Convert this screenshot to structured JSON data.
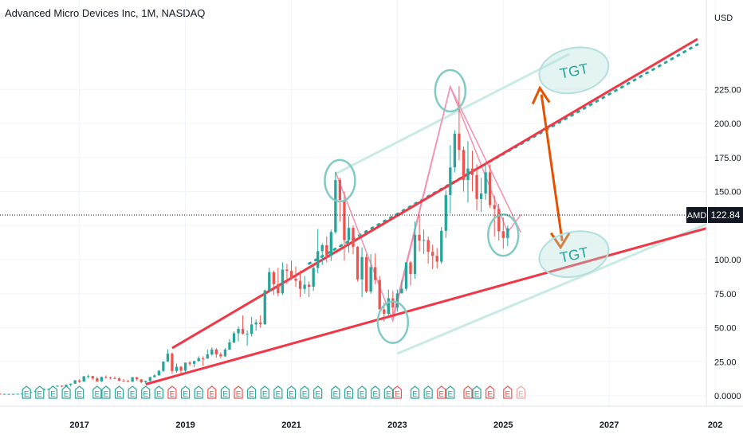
{
  "header": {
    "title": "Advanced Micro Devices Inc, 1M, NASDAQ"
  },
  "axis": {
    "currency_label": "USD"
  },
  "price_label": {
    "symbol": "AMD",
    "value": "122.84"
  },
  "annotations": {
    "target_upper": "TGT",
    "target_lower": "TGT",
    "earnings_marker": "E"
  },
  "colors": {
    "up": "#26a69a",
    "down": "#ef5350",
    "channel": "#f23645",
    "parallel": "#c8ebe5",
    "dotted": "#26a69a",
    "arrow": "#e65100",
    "circle": "#80cbc4",
    "triangle": "#f48fb1",
    "grid": "#f0f3fa"
  },
  "chart_data": {
    "type": "candlestick",
    "title": "Advanced Micro Devices Inc, 1M, NASDAQ",
    "interval": "1M",
    "exchange": "NASDAQ",
    "y_axis": {
      "unit": "USD",
      "ylim": [
        0,
        250
      ],
      "ticks": [
        0,
        25,
        50,
        75,
        100,
        125,
        150,
        175,
        200,
        225
      ]
    },
    "y_tick_labels": [
      "0.0000",
      "25.00",
      "50.00",
      "75.00",
      "100.00",
      "",
      "150.00",
      "175.00",
      "200.00",
      "225.00"
    ],
    "x_axis": {
      "range": [
        "2015-07",
        "2028-11"
      ],
      "ticks": [
        "2017",
        "2019",
        "2021",
        "2023",
        "2025",
        "2027",
        "202"
      ]
    },
    "last_price": 122.84,
    "candles_start": "2015-01",
    "candles": [
      [
        2,
        2,
        1.6,
        1.8
      ],
      [
        1.8,
        1.9,
        1.6,
        1.7
      ],
      [
        1.7,
        1.8,
        1.5,
        1.6
      ],
      [
        1.6,
        1.7,
        1.4,
        1.5
      ],
      [
        1.5,
        1.6,
        1.4,
        1.5
      ],
      [
        1.5,
        1.6,
        1.4,
        1.5
      ],
      [
        1.5,
        1.6,
        1.3,
        1.4
      ],
      [
        1.4,
        1.5,
        1.3,
        1.4
      ],
      [
        1.4,
        1.5,
        1.3,
        1.4
      ],
      [
        1.4,
        1.5,
        1.3,
        1.4
      ],
      [
        1.4,
        1.5,
        1.4,
        1.5
      ],
      [
        1.5,
        1.6,
        1.4,
        1.6
      ],
      [
        1.6,
        2.4,
        1.5,
        2.3
      ],
      [
        2.3,
        2.8,
        2.2,
        2.8
      ],
      [
        2.8,
        3.7,
        2.7,
        3.6
      ],
      [
        3.6,
        4.4,
        3.5,
        4.3
      ],
      [
        4.3,
        5.2,
        4.2,
        5.1
      ],
      [
        5.1,
        5.4,
        4.5,
        5.1
      ],
      [
        5.1,
        7.1,
        5.0,
        6.9
      ],
      [
        6.9,
        7.5,
        6.5,
        7.4
      ],
      [
        7.4,
        7.6,
        6.2,
        6.8
      ],
      [
        6.8,
        8.3,
        6.6,
        8.1
      ],
      [
        8.1,
        9.0,
        6.8,
        8.9
      ],
      [
        8.9,
        11.7,
        8.8,
        11.3
      ],
      [
        11.3,
        12.1,
        9.5,
        10.4
      ],
      [
        10.4,
        14.6,
        10.3,
        14.3
      ],
      [
        14.3,
        15.6,
        12.8,
        14.5
      ],
      [
        14.5,
        14.7,
        11.8,
        12.8
      ],
      [
        12.8,
        13.9,
        10.1,
        10.6
      ],
      [
        10.6,
        14.0,
        10.2,
        13.8
      ],
      [
        13.8,
        15.0,
        12.6,
        13.6
      ],
      [
        13.6,
        14.0,
        12.0,
        13.0
      ],
      [
        13.0,
        14.3,
        12.2,
        12.8
      ],
      [
        12.8,
        13.5,
        10.7,
        11.0
      ],
      [
        11.0,
        12.4,
        10.6,
        10.9
      ],
      [
        10.9,
        11.5,
        10.0,
        10.3
      ],
      [
        10.3,
        13.6,
        10.2,
        13.7
      ],
      [
        13.7,
        13.6,
        11.0,
        12.1
      ],
      [
        12.1,
        12.2,
        9.2,
        10.0
      ],
      [
        10.0,
        11.0,
        9.0,
        10.9
      ],
      [
        10.9,
        14.0,
        10.5,
        13.7
      ],
      [
        13.7,
        16.0,
        13.4,
        15.0
      ],
      [
        15.0,
        19.0,
        14.8,
        18.3
      ],
      [
        18.3,
        25.0,
        17.5,
        25.2
      ],
      [
        25.2,
        34.1,
        24.8,
        30.9
      ],
      [
        30.9,
        32.0,
        16.0,
        18.2
      ],
      [
        18.2,
        23.7,
        16.9,
        21.3
      ],
      [
        21.3,
        22.0,
        16.0,
        18.5
      ],
      [
        18.5,
        24.3,
        17.1,
        24.4
      ],
      [
        24.4,
        25.5,
        22.0,
        23.5
      ],
      [
        23.5,
        25.8,
        21.0,
        25.5
      ],
      [
        25.5,
        29.0,
        25.0,
        27.6
      ],
      [
        27.6,
        29.0,
        22.0,
        27.4
      ],
      [
        27.4,
        34.0,
        27.0,
        30.4
      ],
      [
        30.4,
        35.5,
        29.5,
        34.0
      ],
      [
        34.0,
        35.0,
        28.0,
        30.5
      ],
      [
        30.5,
        31.8,
        27.5,
        29.0
      ],
      [
        29.0,
        35.0,
        28.5,
        33.9
      ],
      [
        33.9,
        41.7,
        33.8,
        39.2
      ],
      [
        39.2,
        47.3,
        38.6,
        45.9
      ],
      [
        45.9,
        51.0,
        40.0,
        49.1
      ],
      [
        49.1,
        59.0,
        45.0,
        45.5
      ],
      [
        45.5,
        48.0,
        36.8,
        45.5
      ],
      [
        45.5,
        58.0,
        43.5,
        52.4
      ],
      [
        52.4,
        56.0,
        48.0,
        53.8
      ],
      [
        53.8,
        59.0,
        50.0,
        52.6
      ],
      [
        52.6,
        78.0,
        52.0,
        77.4
      ],
      [
        77.4,
        94.0,
        76.0,
        90.8
      ],
      [
        90.8,
        92.0,
        74.0,
        82.0
      ],
      [
        82.0,
        94.0,
        73.0,
        75.3
      ],
      [
        75.3,
        98.0,
        74.0,
        92.7
      ],
      [
        92.7,
        97.0,
        82.0,
        91.7
      ],
      [
        91.7,
        99.2,
        85.0,
        86.0
      ],
      [
        86.0,
        95.0,
        80.0,
        84.5
      ],
      [
        84.5,
        92.0,
        72.5,
        78.5
      ],
      [
        78.5,
        88.0,
        75.0,
        81.6
      ],
      [
        81.6,
        84.0,
        72.5,
        80.1
      ],
      [
        80.1,
        95.0,
        77.0,
        93.9
      ],
      [
        93.9,
        122.5,
        90.0,
        106.2
      ],
      [
        106.2,
        112.0,
        96.0,
        110.6
      ],
      [
        110.6,
        117.0,
        98.0,
        102.9
      ],
      [
        102.9,
        122.0,
        99.0,
        120.2
      ],
      [
        120.2,
        164.5,
        119.0,
        158.4
      ],
      [
        158.4,
        160.0,
        128.0,
        143.9
      ],
      [
        143.9,
        150.0,
        99.3,
        114.3
      ],
      [
        114.3,
        132.0,
        105.0,
        123.3
      ],
      [
        123.3,
        125.0,
        104.0,
        109.3
      ],
      [
        109.3,
        110.0,
        84.0,
        85.5
      ],
      [
        85.5,
        109.0,
        72.5,
        101.9
      ],
      [
        101.9,
        104.0,
        75.5,
        76.5
      ],
      [
        76.5,
        104.0,
        75.0,
        94.5
      ],
      [
        94.5,
        104.5,
        82.0,
        85.0
      ],
      [
        85.0,
        88.0,
        63.6,
        63.4
      ],
      [
        63.4,
        68.5,
        54.6,
        60.2
      ],
      [
        60.2,
        78.0,
        58.0,
        71.6
      ],
      [
        71.6,
        77.0,
        60.0,
        64.8
      ],
      [
        64.8,
        78.0,
        61.8,
        75.2
      ],
      [
        75.2,
        85.0,
        76.0,
        78.6
      ],
      [
        78.6,
        98.0,
        77.0,
        98.0
      ],
      [
        98.0,
        99.0,
        81.0,
        89.4
      ],
      [
        89.4,
        128.0,
        86.0,
        118.2
      ],
      [
        118.2,
        132.8,
        106.0,
        113.9
      ],
      [
        113.9,
        122.0,
        104.0,
        114.4
      ],
      [
        114.4,
        117.0,
        97.0,
        105.7
      ],
      [
        105.7,
        111.0,
        93.1,
        102.8
      ],
      [
        102.8,
        108.5,
        93.5,
        98.5
      ],
      [
        98.5,
        124.0,
        97.0,
        121.2
      ],
      [
        121.2,
        151.0,
        116.0,
        147.4
      ],
      [
        147.4,
        184.0,
        134.0,
        167.7
      ],
      [
        167.7,
        195.0,
        164.0,
        192.5
      ],
      [
        192.5,
        227.3,
        173.0,
        180.5
      ],
      [
        180.5,
        183.0,
        150.0,
        158.4
      ],
      [
        158.4,
        187.0,
        142.0,
        166.9
      ],
      [
        166.9,
        180.0,
        150.0,
        162.2
      ],
      [
        162.2,
        170.0,
        136.0,
        144.5
      ],
      [
        144.5,
        160.0,
        135.0,
        148.6
      ],
      [
        148.6,
        171.0,
        144.0,
        164.1
      ],
      [
        164.1,
        170.0,
        138.0,
        140.1
      ],
      [
        140.1,
        147.0,
        117.0,
        137.2
      ],
      [
        137.2,
        141.0,
        114.0,
        120.8
      ],
      [
        120.8,
        131.0,
        108.0,
        115.9
      ],
      [
        115.9,
        125.0,
        110.0,
        123.0
      ]
    ],
    "earnings_markers": [
      {
        "date": "2015-04",
        "type": "up"
      },
      {
        "date": "2016-01",
        "type": "up"
      },
      {
        "date": "2016-04",
        "type": "up"
      },
      {
        "date": "2016-07",
        "type": "up"
      },
      {
        "date": "2016-10",
        "type": "up"
      },
      {
        "date": "2017-01",
        "type": "up"
      },
      {
        "date": "2017-05",
        "type": "up"
      },
      {
        "date": "2017-07",
        "type": "up"
      },
      {
        "date": "2017-10",
        "type": "up"
      },
      {
        "date": "2018-01",
        "type": "up"
      },
      {
        "date": "2018-04",
        "type": "up"
      },
      {
        "date": "2018-07",
        "type": "up"
      },
      {
        "date": "2018-10",
        "type": "down"
      },
      {
        "date": "2019-01",
        "type": "up"
      },
      {
        "date": "2019-04",
        "type": "up"
      },
      {
        "date": "2019-07",
        "type": "down"
      },
      {
        "date": "2019-10",
        "type": "up"
      },
      {
        "date": "2020-01",
        "type": "down"
      },
      {
        "date": "2020-04",
        "type": "up"
      },
      {
        "date": "2020-07",
        "type": "up"
      },
      {
        "date": "2020-10",
        "type": "up"
      },
      {
        "date": "2021-01",
        "type": "up"
      },
      {
        "date": "2021-04",
        "type": "up"
      },
      {
        "date": "2021-07",
        "type": "up"
      },
      {
        "date": "2021-11",
        "type": "up"
      },
      {
        "date": "2022-02",
        "type": "up"
      },
      {
        "date": "2022-05",
        "type": "up"
      },
      {
        "date": "2022-08",
        "type": "up"
      },
      {
        "date": "2022-11",
        "type": "up"
      },
      {
        "date": "2023-01",
        "type": "down"
      },
      {
        "date": "2023-05",
        "type": "up"
      },
      {
        "date": "2023-08",
        "type": "up"
      },
      {
        "date": "2023-11",
        "type": "down"
      },
      {
        "date": "2024-01",
        "type": "up"
      },
      {
        "date": "2024-05",
        "type": "down"
      },
      {
        "date": "2024-07",
        "type": "up"
      },
      {
        "date": "2024-10",
        "type": "down"
      },
      {
        "date": "2025-02",
        "type": "down"
      },
      {
        "date": "2025-05",
        "type": "future"
      }
    ],
    "lines": {
      "upper_channel": [
        [
          "2018-10",
          35
        ],
        [
          "2028-09",
          262
        ]
      ],
      "lower_channel": [
        [
          "2018-04",
          8.5
        ],
        [
          "2028-11",
          123
        ]
      ],
      "dotted_mid": [
        [
          "2021-05",
          97
        ],
        [
          "2028-09",
          258
        ]
      ],
      "parallel_top": [
        [
          "2021-11",
          163
        ],
        [
          "2026-04",
          251
        ]
      ],
      "parallel_bottom": [
        [
          "2023-01",
          31
        ],
        [
          "2028-11",
          126
        ]
      ],
      "triangle_top": [
        [
          "2021-11",
          164.5
        ],
        [
          "2022-12",
          55
        ],
        [
          "2024-01",
          227
        ],
        [
          "2025-02",
          120
        ],
        [
          "2025-05",
          133
        ]
      ],
      "triangle_bottom": [
        [
          "2022-12",
          55
        ],
        [
          "2022-12",
          58
        ],
        [
          "2024-01",
          227
        ],
        [
          "2025-05",
          120
        ]
      ]
    },
    "highlight_circles": [
      {
        "date": "2021-12",
        "price": 158
      },
      {
        "date": "2022-12",
        "price": 54
      },
      {
        "date": "2024-01",
        "price": 224
      },
      {
        "date": "2025-01",
        "price": 118
      }
    ],
    "target_arrow": {
      "date": "2025-12",
      "from": 226,
      "to": 109
    },
    "targets": [
      {
        "label": "TGT",
        "date": "2026-05",
        "price": 239
      },
      {
        "label": "TGT",
        "date": "2026-05",
        "price": 104
      }
    ]
  }
}
